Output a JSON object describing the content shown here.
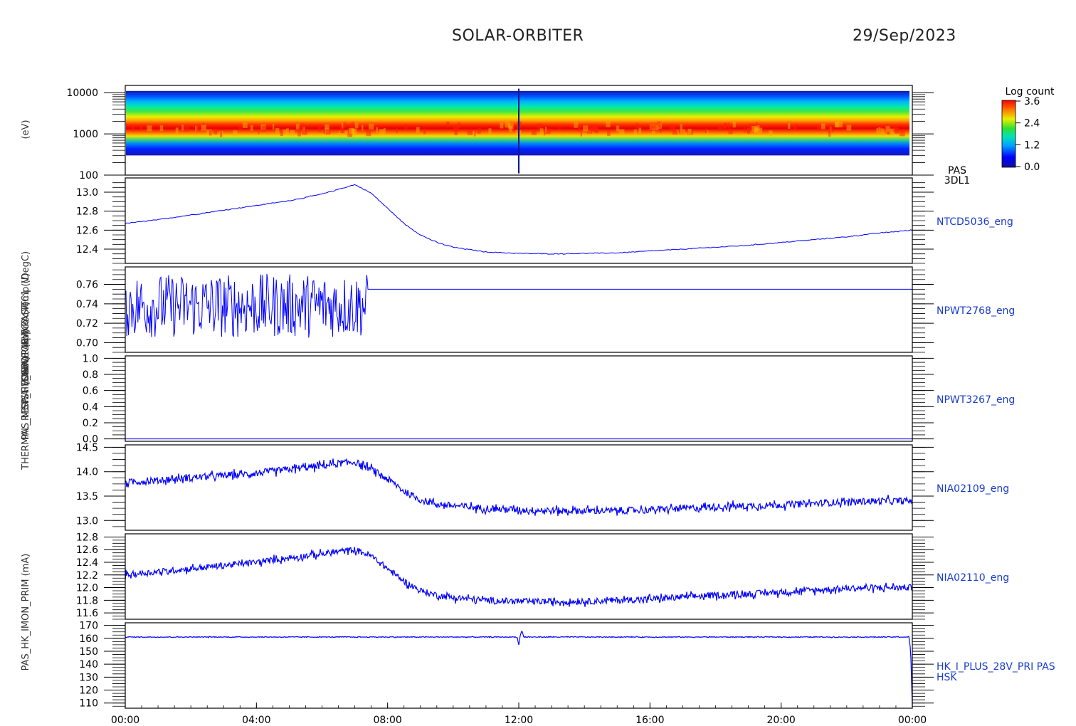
{
  "header": {
    "mission": "SOLAR-ORBITER",
    "date": "29/Sep/2023"
  },
  "colors": {
    "axis": "#000000",
    "series": "#0000ff",
    "label": "#1a3ccc"
  },
  "chart_data": [
    {
      "id": "pas-3dl1",
      "type": "heatmap",
      "label_lines": [
        "PAS",
        "3DL1"
      ],
      "yscale": "log",
      "ylim": [
        100,
        15000
      ],
      "yticks": [
        {
          "value": 100,
          "label": "100"
        },
        {
          "value": 1000,
          "label": "1000"
        },
        {
          "value": 10000,
          "label": "10000"
        }
      ],
      "colorbar": {
        "title": "Log count",
        "range": [
          0.0,
          3.6
        ],
        "ticks": [
          "3.6",
          "2.4",
          "1.2",
          "0.0"
        ]
      },
      "peak_energy_eV": 1300,
      "energy_range_eV": [
        300,
        11000
      ]
    },
    {
      "id": "ntcd5036",
      "type": "line",
      "label_lines": [
        "NTCD5036_eng"
      ],
      "ylim": [
        12.25,
        13.15
      ],
      "yticks": [
        {
          "value": 12.4,
          "label": "12.4"
        },
        {
          "value": 12.6,
          "label": "12.6"
        },
        {
          "value": 12.8,
          "label": "12.8"
        },
        {
          "value": 13.0,
          "label": "13.0"
        }
      ],
      "x": [
        0,
        1,
        2,
        3,
        4,
        5,
        6,
        6.5,
        7,
        7.5,
        8,
        8.5,
        9,
        9.5,
        10,
        11,
        12,
        13,
        14,
        15,
        16,
        17,
        18,
        19,
        20,
        21,
        22,
        23,
        24
      ],
      "values": [
        12.67,
        12.71,
        12.76,
        12.81,
        12.86,
        12.91,
        12.98,
        13.03,
        13.08,
        12.99,
        12.83,
        12.67,
        12.55,
        12.47,
        12.42,
        12.37,
        12.355,
        12.35,
        12.355,
        12.36,
        12.38,
        12.4,
        12.42,
        12.44,
        12.47,
        12.5,
        12.53,
        12.57,
        12.6
      ],
      "noise": 0.004
    },
    {
      "id": "npwt2768",
      "type": "line",
      "label_lines": [
        "NPWT2768_eng"
      ],
      "ylim": [
        0.69,
        0.778
      ],
      "yticks": [
        {
          "value": 0.7,
          "label": "0.70"
        },
        {
          "value": 0.72,
          "label": "0.72"
        },
        {
          "value": 0.74,
          "label": "0.74"
        },
        {
          "value": 0.76,
          "label": "0.76"
        }
      ],
      "x": [
        0,
        7.4,
        7.4,
        24
      ],
      "values": [
        0.726,
        0.726,
        0.755,
        0.755
      ],
      "noisy_until": 7.4,
      "noise_range": [
        0.705,
        0.771
      ]
    },
    {
      "id": "npwt3267",
      "type": "line",
      "label_lines": [
        "NPWT3267_eng"
      ],
      "ylim": [
        -0.03,
        1.03
      ],
      "yticks": [
        {
          "value": 0.0,
          "label": "0.0"
        },
        {
          "value": 0.2,
          "label": "0.2"
        },
        {
          "value": 0.4,
          "label": "0.4"
        },
        {
          "value": 0.6,
          "label": "0.6"
        },
        {
          "value": 0.8,
          "label": "0.8"
        },
        {
          "value": 1.0,
          "label": "1.0"
        }
      ],
      "x": [
        0,
        24
      ],
      "values": [
        0.0,
        0.0
      ]
    },
    {
      "id": "nia02109",
      "type": "line",
      "label_lines": [
        "NIA02109_eng"
      ],
      "ylim": [
        12.8,
        14.55
      ],
      "yticks": [
        {
          "value": 13.0,
          "label": "13.0"
        },
        {
          "value": 13.5,
          "label": "13.5"
        },
        {
          "value": 14.0,
          "label": "14.0"
        },
        {
          "value": 14.5,
          "label": "14.5"
        }
      ],
      "x": [
        0,
        1,
        2,
        3,
        4,
        5,
        6,
        6.5,
        7,
        7.5,
        8,
        8.5,
        9,
        9.5,
        10,
        11,
        12,
        13,
        14,
        15,
        16,
        17,
        18,
        19,
        20,
        21,
        22,
        23,
        24
      ],
      "values": [
        13.78,
        13.82,
        13.88,
        13.92,
        13.97,
        14.05,
        14.12,
        14.17,
        14.2,
        14.05,
        13.85,
        13.6,
        13.42,
        13.34,
        13.3,
        13.25,
        13.22,
        13.2,
        13.2,
        13.2,
        13.22,
        13.25,
        13.28,
        13.3,
        13.32,
        13.35,
        13.38,
        13.4,
        13.4
      ],
      "noise": 0.07
    },
    {
      "id": "nia02110",
      "type": "line",
      "label_lines": [
        "NIA02110_eng"
      ],
      "ylim": [
        11.5,
        12.85
      ],
      "yticks": [
        {
          "value": 11.6,
          "label": "11.6"
        },
        {
          "value": 11.8,
          "label": "11.8"
        },
        {
          "value": 12.0,
          "label": "12.0"
        },
        {
          "value": 12.2,
          "label": "12.2"
        },
        {
          "value": 12.4,
          "label": "12.4"
        },
        {
          "value": 12.6,
          "label": "12.6"
        },
        {
          "value": 12.8,
          "label": "12.8"
        }
      ],
      "x": [
        0,
        1,
        2,
        3,
        4,
        5,
        6,
        6.5,
        7,
        7.5,
        8,
        8.5,
        9,
        9.5,
        10,
        11,
        12,
        13,
        14,
        15,
        16,
        17,
        18,
        19,
        20,
        21,
        22,
        23,
        24
      ],
      "values": [
        12.2,
        12.25,
        12.3,
        12.35,
        12.4,
        12.47,
        12.53,
        12.57,
        12.6,
        12.5,
        12.3,
        12.1,
        11.95,
        11.88,
        11.84,
        11.8,
        11.78,
        11.78,
        11.78,
        11.8,
        11.82,
        11.85,
        11.88,
        11.9,
        11.93,
        11.96,
        11.99,
        12.0,
        12.0
      ],
      "noise": 0.05
    },
    {
      "id": "hk-i-plus-28v",
      "type": "line",
      "label_lines": [
        "HK_I_PLUS_28V_PRI PAS",
        "HSK"
      ],
      "ylim": [
        106,
        172
      ],
      "yticks": [
        {
          "value": 110,
          "label": "110"
        },
        {
          "value": 120,
          "label": "120"
        },
        {
          "value": 130,
          "label": "130"
        },
        {
          "value": 140,
          "label": "140"
        },
        {
          "value": 150,
          "label": "150"
        },
        {
          "value": 160,
          "label": "160"
        },
        {
          "value": 170,
          "label": "170"
        }
      ],
      "x": [
        0,
        11.95,
        12.0,
        12.05,
        12.1,
        12.15,
        23.9,
        23.95,
        24.0
      ],
      "values": [
        161,
        161,
        155,
        163,
        166,
        161,
        161,
        150,
        107
      ],
      "noise": 0.3
    }
  ],
  "xaxis": {
    "range_hours": [
      0,
      24
    ],
    "ticks": [
      {
        "value": 0,
        "label": "00:00"
      },
      {
        "value": 4,
        "label": "04:00"
      },
      {
        "value": 8,
        "label": "08:00"
      },
      {
        "value": 12,
        "label": "12:00"
      },
      {
        "value": 16,
        "label": "16:00"
      },
      {
        "value": 20,
        "label": "20:00"
      },
      {
        "value": 24,
        "label": "00:00"
      }
    ]
  },
  "yaxis_labels": [
    "(eV)",
    "Approx Temp (DegC)",
    "SWA-EOBW-PAS-TC1 (V)",
    "SWA-EOBW-PAS-TC2 (V)",
    "PAS_MCP_HV_SEQ1 (kV)",
    "THERMAL_RESIST (Ohm)",
    "PAS_HK_IMON_PRIM (mA)"
  ]
}
